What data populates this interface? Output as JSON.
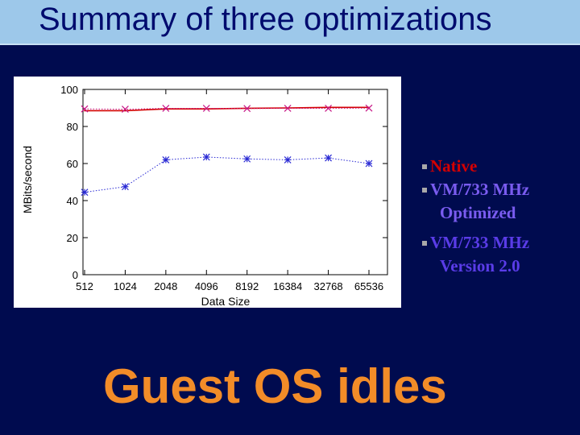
{
  "slide": {
    "title": "Summary of three optimizations",
    "footer": "Guest OS idles"
  },
  "legend": {
    "native": "Native",
    "vm_optimized": "VM/733 MHz",
    "vm_optimized_cont": "Optimized",
    "vm_v2": "VM/733 MHz",
    "vm_v2_cont": "Version 2.0"
  },
  "colors": {
    "background": "#000b4f",
    "title_bar": "#9dc8ea",
    "native": "#d40000",
    "vm_optimized": "#c71585",
    "vm_v2": "#2a2ad4",
    "footer": "#f28c28"
  },
  "chart_data": {
    "type": "line",
    "xlabel": "Data Size",
    "ylabel": "MBits/second",
    "ylim": [
      0,
      100
    ],
    "yticks": [
      0,
      20,
      40,
      60,
      80,
      100
    ],
    "categories": [
      "512",
      "1024",
      "2048",
      "4096",
      "8192",
      "16384",
      "32768",
      "65536"
    ],
    "series": [
      {
        "name": "Native",
        "color": "#d40000",
        "style": "solid",
        "marker": "none",
        "values": [
          88.5,
          88.5,
          89.5,
          89.5,
          89.8,
          90.0,
          90.3,
          90.3
        ]
      },
      {
        "name": "VM/733 MHz Optimized",
        "color": "#c71585",
        "style": "dotted",
        "marker": "x",
        "values": [
          89.5,
          89.3,
          89.8,
          89.8,
          89.7,
          89.8,
          89.8,
          89.9
        ]
      },
      {
        "name": "VM/733 MHz Version 2.0",
        "color": "#2a2ad4",
        "style": "dotted",
        "marker": "asterisk",
        "values": [
          44.5,
          47.5,
          62.0,
          63.5,
          62.5,
          62.0,
          63.0,
          60.0
        ]
      }
    ],
    "grid": false,
    "legend": "right of plot"
  }
}
